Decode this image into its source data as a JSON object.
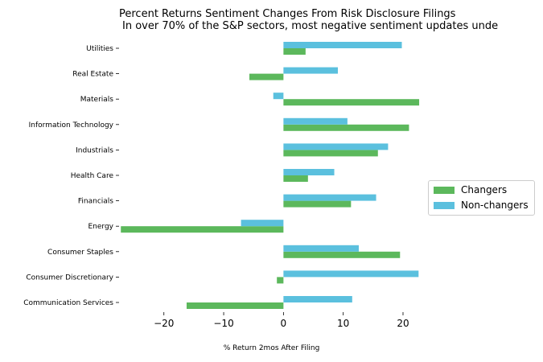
{
  "chart_data": {
    "type": "bar",
    "orientation": "horizontal",
    "title": "Percent Returns Sentiment Changes From Risk Disclosure Filings",
    "subtitle": "In over 70% of the S&P sectors, most negative sentiment updates unde",
    "xlabel": "% Return 2mos After Filing",
    "ylabel": "",
    "xlim": [
      -27.5,
      23.5
    ],
    "xticks": [
      "−20",
      "−10",
      "0",
      "10",
      "20"
    ],
    "xtick_values": [
      -20,
      -10,
      0,
      10,
      20
    ],
    "grid": false,
    "legend_position": "center-right",
    "categories": [
      "Utilities",
      "Real Estate",
      "Materials",
      "Information Technology",
      "Industrials",
      "Health Care",
      "Financials",
      "Energy",
      "Consumer Staples",
      "Consumer Discretionary",
      "Communication Services"
    ],
    "series": [
      {
        "name": "Changers",
        "color": "#5cb85c",
        "values": [
          3.7,
          -5.7,
          22.7,
          21.0,
          15.8,
          4.1,
          11.3,
          -27.2,
          19.5,
          -1.1,
          -16.2
        ]
      },
      {
        "name": "Non-changers",
        "color": "#5bc0de",
        "values": [
          19.8,
          9.1,
          -1.7,
          10.7,
          17.5,
          8.5,
          15.5,
          -7.1,
          12.6,
          22.6,
          11.5
        ]
      }
    ]
  }
}
